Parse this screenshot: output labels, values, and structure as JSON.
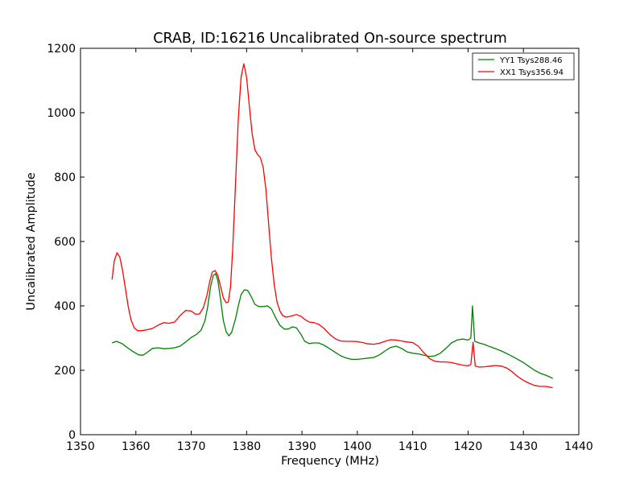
{
  "chart_data": {
    "type": "line",
    "title": "CRAB, ID:16216 Uncalibrated On-source spectrum",
    "xlabel": "Frequency (MHz)",
    "ylabel": "Uncalibrated Amplitude",
    "xlim": [
      1350,
      1440
    ],
    "ylim": [
      0,
      1200
    ],
    "xticks": [
      1350,
      1360,
      1370,
      1380,
      1390,
      1400,
      1410,
      1420,
      1430,
      1440
    ],
    "yticks": [
      0,
      200,
      400,
      600,
      800,
      1000,
      1200
    ],
    "grid": false,
    "legend_position": "top-right",
    "series": [
      {
        "name": "YY1 Tsys288.46",
        "color": "#008000",
        "points": [
          [
            1355.7,
            285
          ],
          [
            1356.5,
            290
          ],
          [
            1357.5,
            283
          ],
          [
            1358.5,
            270
          ],
          [
            1359.5,
            258
          ],
          [
            1360.5,
            248
          ],
          [
            1361.3,
            247
          ],
          [
            1362,
            255
          ],
          [
            1363,
            268
          ],
          [
            1364,
            270
          ],
          [
            1365,
            267
          ],
          [
            1366,
            268
          ],
          [
            1367,
            270
          ],
          [
            1368,
            275
          ],
          [
            1369,
            288
          ],
          [
            1370,
            302
          ],
          [
            1371,
            312
          ],
          [
            1371.8,
            325
          ],
          [
            1372.5,
            355
          ],
          [
            1373,
            400
          ],
          [
            1373.5,
            460
          ],
          [
            1374,
            495
          ],
          [
            1374.4,
            500
          ],
          [
            1374.8,
            480
          ],
          [
            1375.3,
            420
          ],
          [
            1375.8,
            355
          ],
          [
            1376.3,
            320
          ],
          [
            1376.8,
            307
          ],
          [
            1377.3,
            318
          ],
          [
            1378,
            360
          ],
          [
            1378.5,
            400
          ],
          [
            1379,
            435
          ],
          [
            1379.6,
            450
          ],
          [
            1380.2,
            448
          ],
          [
            1380.8,
            430
          ],
          [
            1381.5,
            405
          ],
          [
            1382.2,
            398
          ],
          [
            1383,
            398
          ],
          [
            1383.8,
            400
          ],
          [
            1384.5,
            390
          ],
          [
            1385.2,
            365
          ],
          [
            1386,
            340
          ],
          [
            1386.8,
            328
          ],
          [
            1387.5,
            328
          ],
          [
            1388.3,
            335
          ],
          [
            1389,
            332
          ],
          [
            1389.8,
            312
          ],
          [
            1390.5,
            290
          ],
          [
            1391.3,
            283
          ],
          [
            1392,
            285
          ],
          [
            1393,
            285
          ],
          [
            1394,
            278
          ],
          [
            1395,
            267
          ],
          [
            1396,
            256
          ],
          [
            1397,
            245
          ],
          [
            1398,
            238
          ],
          [
            1399,
            234
          ],
          [
            1400,
            234
          ],
          [
            1401,
            236
          ],
          [
            1402,
            238
          ],
          [
            1403,
            240
          ],
          [
            1404,
            248
          ],
          [
            1405,
            260
          ],
          [
            1406,
            271
          ],
          [
            1407,
            275
          ],
          [
            1408,
            268
          ],
          [
            1409,
            257
          ],
          [
            1410,
            253
          ],
          [
            1411,
            251
          ],
          [
            1412,
            247
          ],
          [
            1413,
            243
          ],
          [
            1414,
            245
          ],
          [
            1415,
            253
          ],
          [
            1416,
            268
          ],
          [
            1417,
            285
          ],
          [
            1418,
            294
          ],
          [
            1419,
            297
          ],
          [
            1420,
            294
          ],
          [
            1420.5,
            300
          ],
          [
            1420.8,
            400
          ],
          [
            1421.2,
            290
          ],
          [
            1422,
            285
          ],
          [
            1423,
            280
          ],
          [
            1424,
            273
          ],
          [
            1425,
            267
          ],
          [
            1426,
            260
          ],
          [
            1427,
            252
          ],
          [
            1428,
            243
          ],
          [
            1429,
            234
          ],
          [
            1430,
            224
          ],
          [
            1431,
            212
          ],
          [
            1432,
            200
          ],
          [
            1433,
            191
          ],
          [
            1434,
            185
          ],
          [
            1435.3,
            175
          ]
        ]
      },
      {
        "name": "XX1 Tsys356.94",
        "color": "#ff0000",
        "points": [
          [
            1355.7,
            482
          ],
          [
            1356.1,
            540
          ],
          [
            1356.6,
            565
          ],
          [
            1357.1,
            552
          ],
          [
            1357.6,
            510
          ],
          [
            1358.1,
            455
          ],
          [
            1358.6,
            400
          ],
          [
            1359.1,
            358
          ],
          [
            1359.7,
            332
          ],
          [
            1360.3,
            323
          ],
          [
            1361,
            323
          ],
          [
            1362,
            326
          ],
          [
            1363,
            330
          ],
          [
            1364,
            340
          ],
          [
            1365,
            348
          ],
          [
            1366,
            346
          ],
          [
            1367,
            350
          ],
          [
            1368,
            370
          ],
          [
            1369,
            386
          ],
          [
            1370,
            384
          ],
          [
            1370.8,
            374
          ],
          [
            1371.5,
            375
          ],
          [
            1372.2,
            395
          ],
          [
            1372.8,
            430
          ],
          [
            1373.4,
            480
          ],
          [
            1373.8,
            505
          ],
          [
            1374.3,
            510
          ],
          [
            1374.8,
            495
          ],
          [
            1375.3,
            460
          ],
          [
            1375.8,
            425
          ],
          [
            1376.3,
            410
          ],
          [
            1376.7,
            412
          ],
          [
            1377.1,
            460
          ],
          [
            1377.5,
            580
          ],
          [
            1378,
            780
          ],
          [
            1378.5,
            980
          ],
          [
            1379,
            1110
          ],
          [
            1379.5,
            1152
          ],
          [
            1380,
            1110
          ],
          [
            1380.5,
            1020
          ],
          [
            1381,
            935
          ],
          [
            1381.5,
            885
          ],
          [
            1382,
            870
          ],
          [
            1382.5,
            860
          ],
          [
            1383,
            830
          ],
          [
            1383.5,
            760
          ],
          [
            1384,
            650
          ],
          [
            1384.5,
            545
          ],
          [
            1385,
            465
          ],
          [
            1385.5,
            412
          ],
          [
            1386,
            385
          ],
          [
            1386.5,
            370
          ],
          [
            1387.2,
            365
          ],
          [
            1388,
            368
          ],
          [
            1389,
            373
          ],
          [
            1389.8,
            368
          ],
          [
            1390.5,
            358
          ],
          [
            1391.3,
            350
          ],
          [
            1392.2,
            348
          ],
          [
            1393,
            343
          ],
          [
            1394,
            330
          ],
          [
            1395,
            312
          ],
          [
            1396,
            298
          ],
          [
            1397,
            291
          ],
          [
            1398,
            290
          ],
          [
            1399,
            290
          ],
          [
            1400,
            289
          ],
          [
            1401,
            286
          ],
          [
            1402,
            282
          ],
          [
            1403,
            281
          ],
          [
            1404,
            284
          ],
          [
            1405,
            290
          ],
          [
            1406,
            295
          ],
          [
            1407,
            294
          ],
          [
            1408,
            291
          ],
          [
            1409,
            288
          ],
          [
            1410,
            286
          ],
          [
            1411,
            275
          ],
          [
            1412,
            255
          ],
          [
            1413,
            237
          ],
          [
            1414,
            228
          ],
          [
            1415,
            226
          ],
          [
            1416,
            226
          ],
          [
            1417,
            224
          ],
          [
            1418,
            220
          ],
          [
            1419,
            216
          ],
          [
            1420,
            214
          ],
          [
            1420.5,
            218
          ],
          [
            1420.9,
            287
          ],
          [
            1421.3,
            213
          ],
          [
            1422,
            210
          ],
          [
            1423,
            211
          ],
          [
            1424,
            213
          ],
          [
            1425,
            215
          ],
          [
            1426,
            213
          ],
          [
            1427,
            207
          ],
          [
            1428,
            195
          ],
          [
            1429,
            180
          ],
          [
            1430,
            169
          ],
          [
            1431,
            160
          ],
          [
            1432,
            153
          ],
          [
            1433,
            150
          ],
          [
            1434,
            150
          ],
          [
            1435.3,
            146
          ]
        ]
      }
    ]
  }
}
